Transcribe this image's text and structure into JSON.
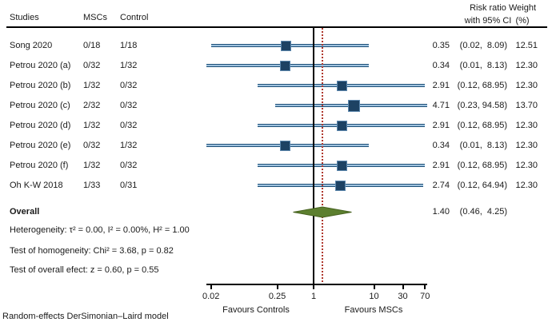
{
  "header": {
    "studies": "Studies",
    "mscs": "MSCs",
    "control": "Control",
    "risk_ratio_line1": "Risk ratio",
    "risk_ratio_line2": "with 95% CI",
    "weight_line1": "Weight",
    "weight_line2": "(%)"
  },
  "chart_data": {
    "type": "forest",
    "x_scale": "log10",
    "x_ticks": [
      0.02,
      0.25,
      1,
      10,
      30,
      70
    ],
    "x_tick_labels": [
      "0.02",
      "0.25",
      "1",
      "10",
      "30",
      "70"
    ],
    "x_range": [
      0.02,
      70
    ],
    "ref_line_value": 1,
    "overall_dotted_line_value": 1.4,
    "favours": {
      "left": "Favours Controls",
      "right": "Favours MSCs"
    },
    "studies": [
      {
        "name": "Song 2020",
        "mscs": "0/18",
        "control": "1/18",
        "rr": 0.35,
        "lo": 0.02,
        "hi": 8.09,
        "rr_label": "0.35",
        "ci_label": "(0.02,  8.09)",
        "weight": "12.51"
      },
      {
        "name": "Petrou 2020 (a)",
        "mscs": "0/32",
        "control": "1/32",
        "rr": 0.34,
        "lo": 0.01,
        "hi": 8.13,
        "rr_label": "0.34",
        "ci_label": "(0.01,  8.13)",
        "weight": "12.30"
      },
      {
        "name": "Petrou 2020 (b)",
        "mscs": "1/32",
        "control": "0/32",
        "rr": 2.91,
        "lo": 0.12,
        "hi": 68.95,
        "rr_label": "2.91",
        "ci_label": "(0.12, 68.95)",
        "weight": "12.30"
      },
      {
        "name": "Petrou 2020 (c)",
        "mscs": "2/32",
        "control": "0/32",
        "rr": 4.71,
        "lo": 0.23,
        "hi": 94.58,
        "rr_label": "4.71",
        "ci_label": "(0.23, 94.58)",
        "weight": "13.70"
      },
      {
        "name": "Petrou 2020 (d)",
        "mscs": "1/32",
        "control": "0/32",
        "rr": 2.91,
        "lo": 0.12,
        "hi": 68.95,
        "rr_label": "2.91",
        "ci_label": "(0.12, 68.95)",
        "weight": "12.30"
      },
      {
        "name": "Petrou 2020 (e)",
        "mscs": "0/32",
        "control": "1/32",
        "rr": 0.34,
        "lo": 0.01,
        "hi": 8.13,
        "rr_label": "0.34",
        "ci_label": "(0.01,  8.13)",
        "weight": "12.30"
      },
      {
        "name": "Petrou 2020 (f)",
        "mscs": "1/32",
        "control": "0/32",
        "rr": 2.91,
        "lo": 0.12,
        "hi": 68.95,
        "rr_label": "2.91",
        "ci_label": "(0.12, 68.95)",
        "weight": "12.30"
      },
      {
        "name": "Oh K-W 2018",
        "mscs": "1/33",
        "control": "0/31",
        "rr": 2.74,
        "lo": 0.12,
        "hi": 64.94,
        "rr_label": "2.74",
        "ci_label": "(0.12, 64.94)",
        "weight": "12.30"
      }
    ],
    "overall": {
      "label": "Overall",
      "rr": 1.4,
      "lo": 0.46,
      "hi": 4.25,
      "rr_label": "1.40",
      "ci_label": "(0.46,  4.25)"
    }
  },
  "stats": {
    "heterogeneity": "Heterogeneity: τ² = 0.00, I² = 0.00%, H² = 1.00",
    "homogeneity": "Test of homogeneity: Chi² = 3.68, p = 0.82",
    "overall_effect": "Test of overall efect: z = 0.60, p = 0.55"
  },
  "footer": {
    "model": "Random-effects DerSimonian–Laird model"
  },
  "colors": {
    "ci_line_edge": "#1f5077",
    "ci_line_fill": "#9cc0dd",
    "marker_fill": "#1d4263",
    "marker_border": "#5c87ad",
    "diamond_fill": "#5c7f2f",
    "diamond_stroke": "#46611f",
    "ref_line": "#000000",
    "overall_dotted_line": "#b0392f"
  }
}
